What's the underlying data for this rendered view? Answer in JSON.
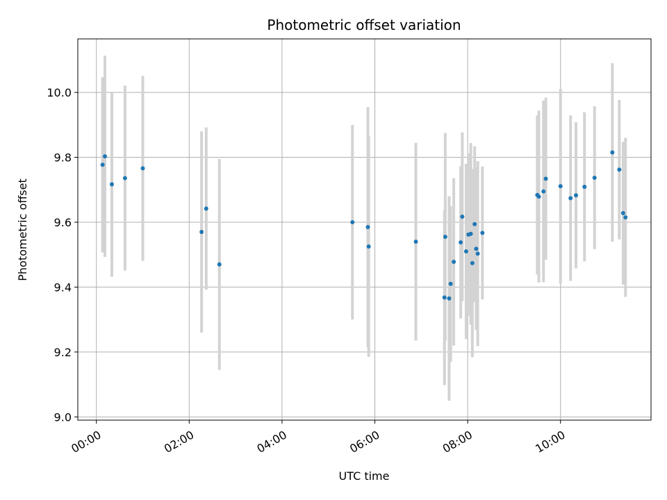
{
  "chart_data": {
    "type": "scatter",
    "title": "Photometric offset variation",
    "xlabel": "UTC time",
    "ylabel": "Photometric offset",
    "x_unit": "hours",
    "xlim": [
      -0.4,
      11.95
    ],
    "ylim": [
      8.99,
      10.165
    ],
    "x_ticks": [
      0,
      2,
      4,
      6,
      8,
      10
    ],
    "x_tick_labels": [
      "00:00",
      "02:00",
      "04:00",
      "06:00",
      "08:00",
      "10:00"
    ],
    "y_ticks": [
      9.0,
      9.2,
      9.4,
      9.6,
      9.8,
      10.0
    ],
    "y_tick_labels": [
      "9.0",
      "9.2",
      "9.4",
      "9.6",
      "9.8",
      "10.0"
    ],
    "grid": true,
    "marker_color": "#1f77b4",
    "errorbar_color": "#d3d3d3",
    "points": [
      {
        "x": "00:08",
        "y": 9.777,
        "err": 0.27
      },
      {
        "x": "00:11",
        "y": 9.803,
        "err": 0.31
      },
      {
        "x": "00:20",
        "y": 9.717,
        "err": 0.285
      },
      {
        "x": "00:37",
        "y": 9.736,
        "err": 0.285
      },
      {
        "x": "01:00",
        "y": 9.766,
        "err": 0.285
      },
      {
        "x": "02:16",
        "y": 9.57,
        "err": 0.31
      },
      {
        "x": "02:22",
        "y": 9.642,
        "err": 0.25
      },
      {
        "x": "02:39",
        "y": 9.47,
        "err": 0.325
      },
      {
        "x": "05:31",
        "y": 9.6,
        "err": 0.3
      },
      {
        "x": "05:51",
        "y": 9.585,
        "err": 0.37
      },
      {
        "x": "05:52",
        "y": 9.525,
        "err": 0.34
      },
      {
        "x": "06:53",
        "y": 9.54,
        "err": 0.305
      },
      {
        "x": "07:30",
        "y": 9.368,
        "err": 0.27
      },
      {
        "x": "07:31",
        "y": 9.555,
        "err": 0.32
      },
      {
        "x": "07:36",
        "y": 9.365,
        "err": 0.315
      },
      {
        "x": "07:38",
        "y": 9.41,
        "err": 0.24
      },
      {
        "x": "07:42",
        "y": 9.478,
        "err": 0.258
      },
      {
        "x": "07:51",
        "y": 9.538,
        "err": 0.235
      },
      {
        "x": "07:53",
        "y": 9.617,
        "err": 0.26
      },
      {
        "x": "07:58",
        "y": 9.51,
        "err": 0.27
      },
      {
        "x": "08:01",
        "y": 9.562,
        "err": 0.25
      },
      {
        "x": "08:04",
        "y": 9.564,
        "err": 0.28
      },
      {
        "x": "08:06",
        "y": 9.474,
        "err": 0.29
      },
      {
        "x": "08:09",
        "y": 9.594,
        "err": 0.24
      },
      {
        "x": "08:11",
        "y": 9.518,
        "err": 0.25
      },
      {
        "x": "08:13",
        "y": 9.503,
        "err": 0.285
      },
      {
        "x": "08:19",
        "y": 9.567,
        "err": 0.205
      },
      {
        "x": "09:30",
        "y": 9.684,
        "err": 0.245
      },
      {
        "x": "09:32",
        "y": 9.679,
        "err": 0.265
      },
      {
        "x": "09:38",
        "y": 9.695,
        "err": 0.28
      },
      {
        "x": "09:41",
        "y": 9.734,
        "err": 0.25
      },
      {
        "x": "10:00",
        "y": 9.711,
        "err": 0.3
      },
      {
        "x": "10:13",
        "y": 9.674,
        "err": 0.255
      },
      {
        "x": "10:20",
        "y": 9.683,
        "err": 0.225
      },
      {
        "x": "10:31",
        "y": 9.709,
        "err": 0.23
      },
      {
        "x": "10:44",
        "y": 9.737,
        "err": 0.22
      },
      {
        "x": "11:07",
        "y": 9.815,
        "err": 0.275
      },
      {
        "x": "11:16",
        "y": 9.762,
        "err": 0.215
      },
      {
        "x": "11:21",
        "y": 9.628,
        "err": 0.22
      },
      {
        "x": "11:24",
        "y": 9.615,
        "err": 0.245
      }
    ]
  }
}
